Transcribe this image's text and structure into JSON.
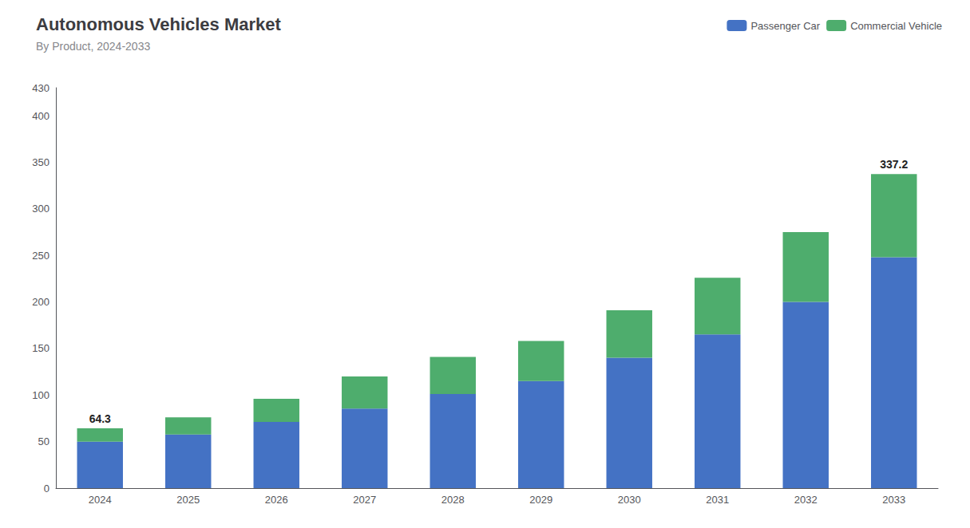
{
  "chart_data": {
    "type": "bar",
    "title": "Autonomous Vehicles Market",
    "subtitle": "By Product, 2024-2033",
    "categories": [
      "2024",
      "2025",
      "2026",
      "2027",
      "2028",
      "2029",
      "2030",
      "2031",
      "2032",
      "2033"
    ],
    "series": [
      {
        "name": "Passenger Car",
        "color": "#4472C4",
        "values": [
          50.0,
          57.5,
          71.0,
          85.5,
          101.0,
          115.0,
          140.0,
          165.0,
          200.0,
          248.0
        ]
      },
      {
        "name": "Commercial Vehicle",
        "color": "#4EAD6D",
        "values": [
          14.3,
          18.5,
          25.0,
          34.5,
          40.0,
          43.0,
          51.0,
          61.0,
          75.0,
          89.2
        ]
      }
    ],
    "stacked": true,
    "annotations": [
      {
        "x": "2024",
        "text": "64.3"
      },
      {
        "x": "2033",
        "text": "337.2"
      }
    ],
    "ylim": [
      0,
      430
    ],
    "yticks": [
      0,
      50,
      100,
      150,
      200,
      250,
      300,
      350,
      400
    ],
    "grid": false,
    "legend": "upper right"
  }
}
